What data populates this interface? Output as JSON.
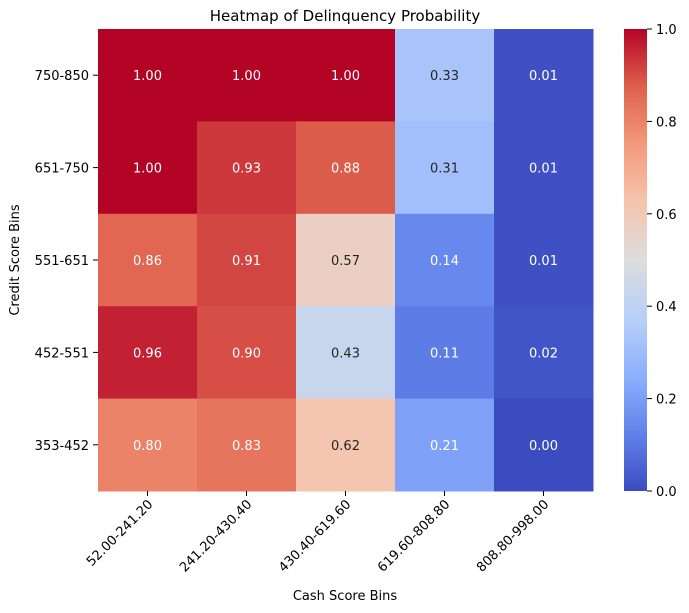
{
  "chart_data": {
    "type": "heatmap",
    "title": "Heatmap of Delinquency Probability",
    "xlabel": "Cash Score Bins",
    "ylabel": "Credit Score Bins",
    "x_categories": [
      "52.00-241.20",
      "241.20-430.40",
      "430.40-619.60",
      "619.60-808.80",
      "808.80-998.00"
    ],
    "y_categories": [
      "750-850",
      "651-750",
      "551-651",
      "452-551",
      "353-452"
    ],
    "values": [
      [
        1.0,
        1.0,
        1.0,
        0.33,
        0.01
      ],
      [
        1.0,
        0.93,
        0.88,
        0.31,
        0.01
      ],
      [
        0.86,
        0.91,
        0.57,
        0.14,
        0.01
      ],
      [
        0.96,
        0.9,
        0.43,
        0.11,
        0.02
      ],
      [
        0.8,
        0.83,
        0.62,
        0.21,
        0.0
      ]
    ],
    "value_format": "0.00",
    "colormap": "coolwarm",
    "colorbar": {
      "range": [
        0,
        1
      ],
      "ticks": [
        "0.0",
        "0.2",
        "0.4",
        "0.6",
        "0.8",
        "1.0"
      ]
    },
    "grid": false,
    "legend": "none"
  }
}
